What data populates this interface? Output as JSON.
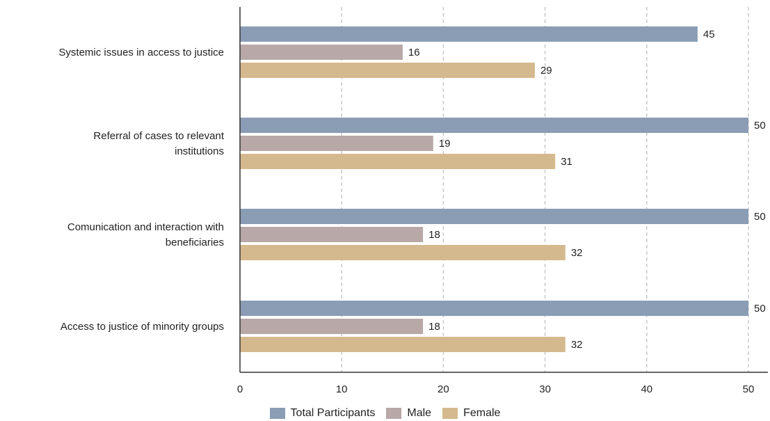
{
  "chart_data": {
    "type": "bar",
    "orientation": "horizontal",
    "categories": [
      [
        "Systemic issues in access to justice"
      ],
      [
        "Referral of cases to relevant",
        "institutions"
      ],
      [
        "Comunication and interaction with",
        "beneficiaries"
      ],
      [
        "Access to justice of minority groups"
      ]
    ],
    "series": [
      {
        "name": "Total Participants",
        "color": "#8a9db5",
        "values": [
          45,
          50,
          50,
          50
        ]
      },
      {
        "name": "Male",
        "color": "#b8a8a8",
        "values": [
          16,
          19,
          18,
          18
        ]
      },
      {
        "name": "Female",
        "color": "#d5b98e",
        "values": [
          29,
          31,
          32,
          32
        ]
      }
    ],
    "xlim": [
      0,
      50
    ],
    "xticks": [
      0,
      10,
      20,
      30,
      40,
      50
    ],
    "grid": "vertical dashed",
    "legend_position": "bottom-center",
    "data_labels": true
  }
}
